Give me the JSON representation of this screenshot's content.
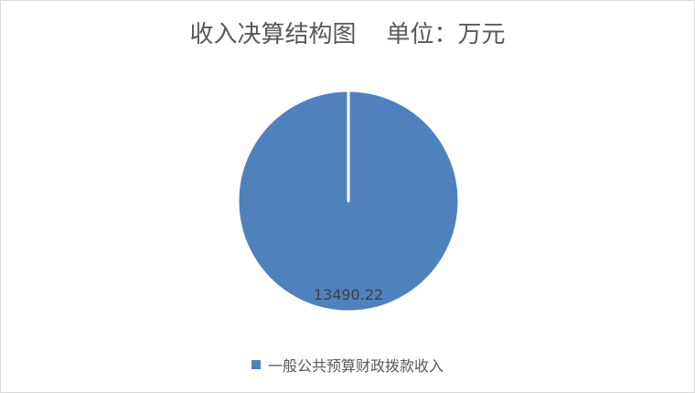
{
  "chart_data": {
    "type": "pie",
    "title": "收入决算结构图    单位：万元",
    "slices": [
      {
        "name": "一般公共预算财政拨款收入",
        "value": 13490.22,
        "label": "13490.22",
        "color": "#4f81bd"
      }
    ],
    "legend_position": "bottom"
  }
}
